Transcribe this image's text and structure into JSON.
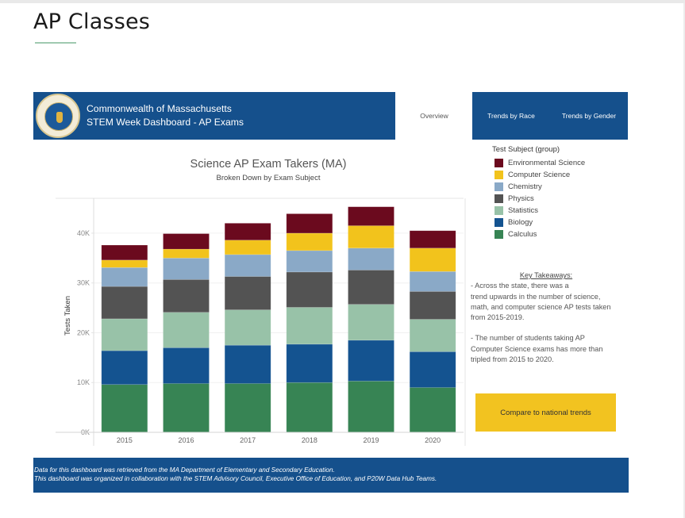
{
  "page": {
    "title": "AP Classes"
  },
  "header": {
    "seal_icon": "massachusetts-seal-icon",
    "line1": "Commonwealth of Massachusetts",
    "line2": "STEM Week Dashboard - AP Exams"
  },
  "nav": {
    "tabs": [
      {
        "label": "Overview",
        "active": true
      },
      {
        "label": "Trends by Race",
        "active": false
      },
      {
        "label": "Trends by Gender",
        "active": false
      }
    ]
  },
  "legend": {
    "title": "Test Subject (group)",
    "items": [
      {
        "label": "Environmental Science",
        "color": "#6b0a1e"
      },
      {
        "label": "Computer Science",
        "color": "#f2c31c"
      },
      {
        "label": "Chemistry",
        "color": "#8aa9c7"
      },
      {
        "label": "Physics",
        "color": "#535353"
      },
      {
        "label": "Statistics",
        "color": "#98c2a8"
      },
      {
        "label": "Biology",
        "color": "#145390"
      },
      {
        "label": "Calculus",
        "color": "#378454"
      }
    ]
  },
  "takeaways": {
    "title": "Key Takeaways:",
    "point1_line1": "- Across the state, there was a",
    "point1_line2": "trend upwards in the number of science,",
    "point1_line3": "math, and computer science AP tests taken",
    "point1_line4": "from 2015-2019.",
    "point2_line1": "- The number of students taking AP",
    "point2_line2": "Computer Science exams has more than",
    "point2_line3": "tripled from 2015 to 2020."
  },
  "compare_button": {
    "label": "Compare to national trends"
  },
  "footer": {
    "line1": "Data for this dashboard was retrieved from the MA Department of Elementary and Secondary Education.",
    "line2": "This dashboard was organized in collaboration with the STEM Advisory Council, Executive Office of Education, and P20W Data Hub Teams."
  },
  "chart_data": {
    "type": "bar",
    "stacked": true,
    "title": "Science AP Exam Takers (MA)",
    "subtitle": "Broken Down by Exam Subject",
    "xlabel": "",
    "ylabel": "Tests Taken",
    "ylim": [
      0,
      47000
    ],
    "yticks": [
      0,
      10000,
      20000,
      30000,
      40000
    ],
    "ytick_labels": [
      "0K",
      "10K",
      "20K",
      "30K",
      "40K"
    ],
    "grid": true,
    "legend_position": "right",
    "categories": [
      "2015",
      "2016",
      "2017",
      "2018",
      "2019",
      "2020"
    ],
    "series": [
      {
        "name": "Calculus",
        "color": "#378454",
        "values": [
          9600,
          9800,
          9800,
          10000,
          10300,
          9000
        ]
      },
      {
        "name": "Biology",
        "color": "#145390",
        "values": [
          6800,
          7200,
          7700,
          7700,
          8200,
          7200
        ]
      },
      {
        "name": "Statistics",
        "color": "#98c2a8",
        "values": [
          6400,
          7100,
          7100,
          7400,
          7200,
          6500
        ]
      },
      {
        "name": "Physics",
        "color": "#535353",
        "values": [
          6500,
          6600,
          6700,
          7100,
          6900,
          5600
        ]
      },
      {
        "name": "Chemistry",
        "color": "#8aa9c7",
        "values": [
          3800,
          4300,
          4400,
          4300,
          4400,
          4000
        ]
      },
      {
        "name": "Computer Science",
        "color": "#f2c31c",
        "values": [
          1500,
          1800,
          2900,
          3500,
          4500,
          4700
        ]
      },
      {
        "name": "Environmental Science",
        "color": "#6b0a1e",
        "values": [
          3000,
          3100,
          3400,
          3900,
          3800,
          3500
        ]
      }
    ]
  }
}
